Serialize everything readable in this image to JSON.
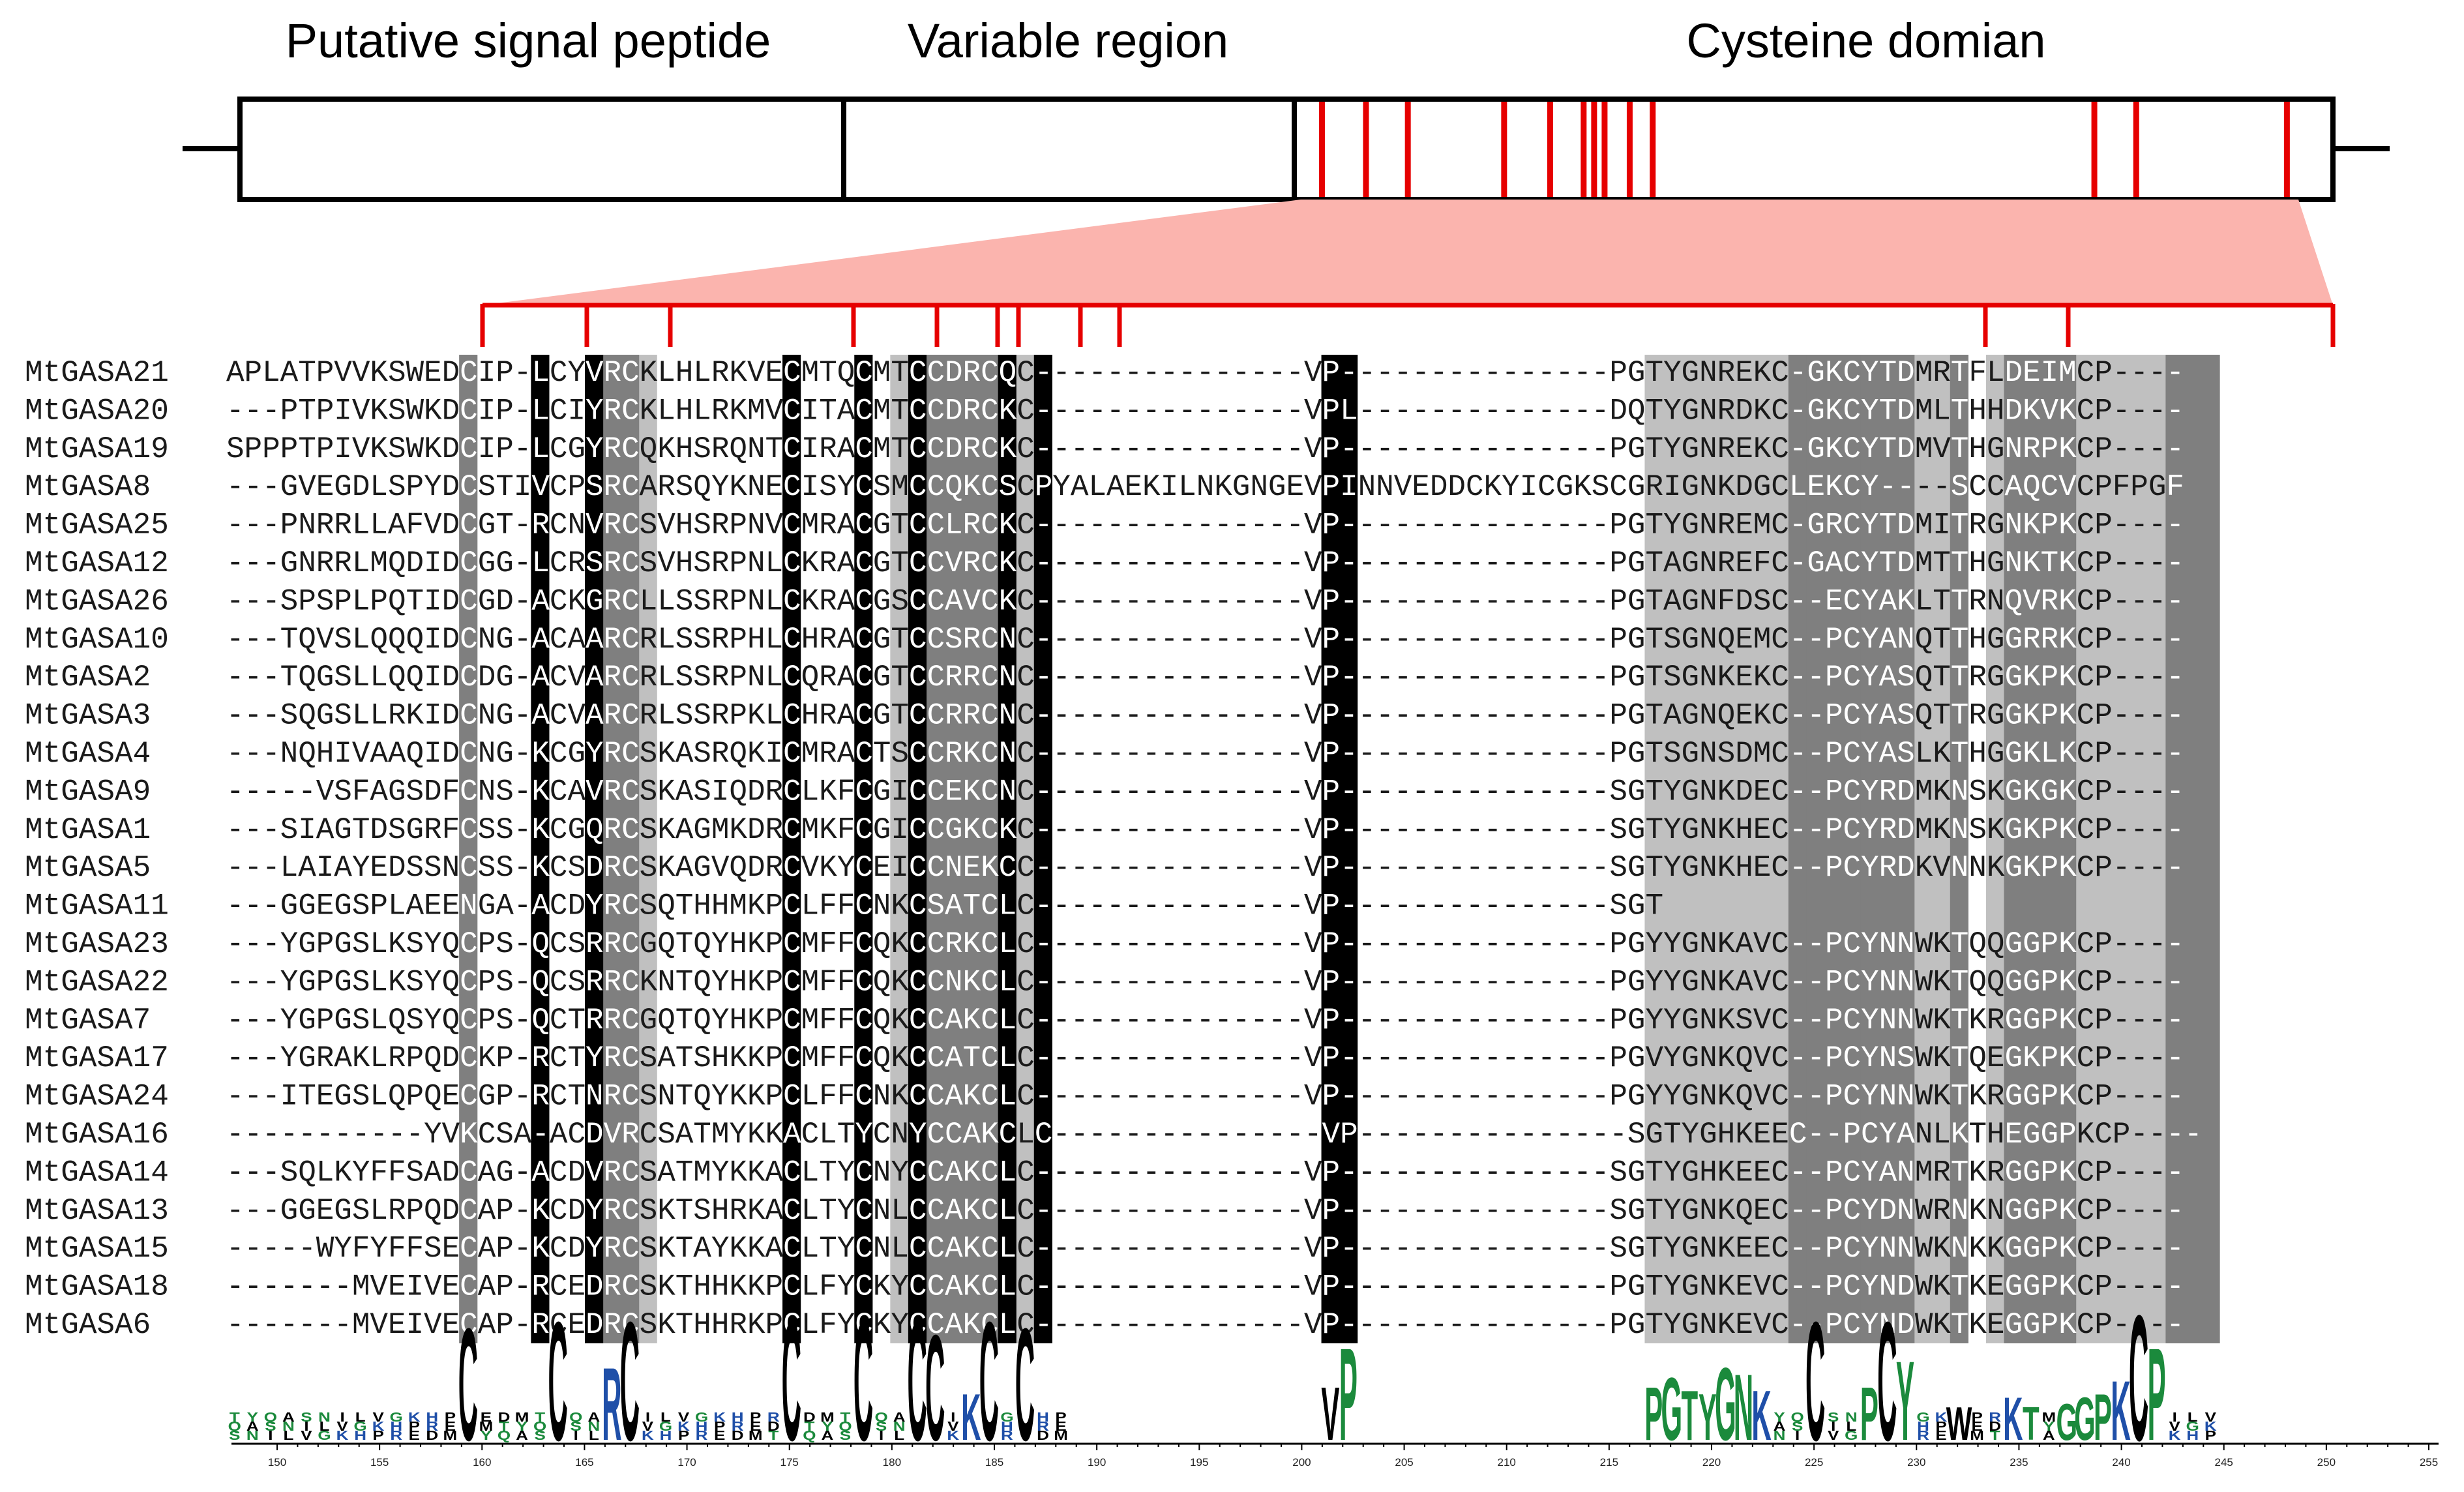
{
  "regions": {
    "signal": "Putative signal peptide",
    "variable": "Variable region",
    "cysteine": "Cysteine domian"
  },
  "colors": {
    "conserved_cys": "#e60000",
    "highlight_triangle": "#fbb4ae",
    "shade_black": "#000000",
    "shade_dark": "#7f7f7f",
    "shade_light": "#c0c0c0",
    "logo_blue": "#1f4fa8",
    "logo_green": "#1b8a3c",
    "logo_black": "#000000"
  },
  "sequences": [
    {
      "name": "MtGASA21",
      "seq": "APLATPVVKSWEDCIP-LCYVRCKLHLRKVECMTQCMTCCDRCQC---------------VP---------------PGTYGNREKC-GKCYTDMRTFLDEIMCP----"
    },
    {
      "name": "MtGASA20",
      "seq": "---PTPIVKSWKDCIP-LCIYRCKLHLRKMVCITACMTCCDRCKC---------------VPL--------------DQTYGNRDKC-GKCYTDMLTHHDKVKCP----"
    },
    {
      "name": "MtGASA19",
      "seq": "SPPPTPIVKSWKDCIP-LCGYRCQKHSRQNTCIRACMTCCDRCKC---------------VP---------------PGTYGNREKC-GKCYTDMVTHGNRPKCP----"
    },
    {
      "name": "MtGASA8",
      "seq": "---GVEGDLSPYDCSTIVCPSRCARSQYKNECISYCSMCCQKCSCPYALAEKILNKGNGEVPINNVEDDCKYICGKSCGRIGNKDGCLEKCY----SCCAQCVCPFPGF"
    },
    {
      "name": "MtGASA25",
      "seq": "---PNRRLLAFVDCGT-RCNVRCSVHSRPNVCMRACGTCCLRCKC---------------VP---------------PGTYGNREMC-GRCYTDMITRGNKPKCP----"
    },
    {
      "name": "MtGASA12",
      "seq": "---GNRRLMQDIDCGG-LCRSRCSVHSRPNLCKRACGTCCVRCKC---------------VP---------------PGTAGNREFC-GACYTDMTTHGNKTKCP----"
    },
    {
      "name": "MtGASA26",
      "seq": "---SPSPLPQTIDCGD-ACKGRCLLSSRPNLCKRACGSCCAVCKC---------------VP---------------PGTAGNFDSC--ECYAKLTTRNQVRKCP----"
    },
    {
      "name": "MtGASA10",
      "seq": "---TQVSLQQQIDCNG-ACAARCRLSSRPHLCHRACGTCCSRCNC---------------VP---------------PGTSGNQEMC--PCYANQTTHGGRRKCP----"
    },
    {
      "name": "MtGASA2",
      "seq": "---TQGSLLQQIDCDG-ACVARCRLSSRPNLCQRACGTCCRRCNC---------------VP---------------PGTSGNKEKC--PCYASQTTRGGKPKCP----"
    },
    {
      "name": "MtGASA3",
      "seq": "---SQGSLLRKIDCNG-ACVARCRLSSRPKLCHRACGTCCRRCNC---------------VP---------------PGTAGNQEKC--PCYASQTTRGGKPKCP----"
    },
    {
      "name": "MtGASA4",
      "seq": "---NQHIVAAQIDCNG-KCGYRCSKASRQKICMRACTSCCRKCNC---------------VP---------------PGTSGNSDMC--PCYASLKTHGGKLKCP----"
    },
    {
      "name": "MtGASA9",
      "seq": "-----VSFAGSDFCNS-KCAVRCSKASIQDRCLKFCGICCEKCNC---------------VP---------------SGTYGNKDEC--PCYRDMKNSKGKGKCP----"
    },
    {
      "name": "MtGASA1",
      "seq": "---SIAGTDSGRFCSS-KCGQRCSKAGMKDRCMKFCGICCGKCKC---------------VP---------------SGTYGNKHEC--PCYRDMKNSKGKPKCP----"
    },
    {
      "name": "MtGASA5",
      "seq": "---LAIAYEDSSNCSS-KCSDRCSKAGVQDRCVKYCEICCNEKCC---------------VP---------------SGTYGNKHEC--PCYRDKVNNKGKPKCP----"
    },
    {
      "name": "MtGASA11",
      "seq": "---GGEGSPLAEENGA-ACDYRCSQTHHMKPCLFFCNKCSATCLC---------------VP---------------SGT"
    },
    {
      "name": "MtGASA23",
      "seq": "---YGPGSLKSYQCPS-QCSRRCGQTQYHKPCMFFCQKCCRKCLC---------------VP---------------PGYYGNKAVC--PCYNNWKTQQGGPKCP----"
    },
    {
      "name": "MtGASA22",
      "seq": "---YGPGSLKSYQCPS-QCSRRCKNTQYHKPCMFFCQKCCNKCLC---------------VP---------------PGYYGNKAVC--PCYNNWKTQQGGPKCP----"
    },
    {
      "name": "MtGASA7",
      "seq": "---YGPGSLQSYQCPS-QCTRRCGQTQYHKPCMFFCQKCCAKCLC---------------VP---------------PGYYGNKSVC--PCYNNWKTKRGGPKCP----"
    },
    {
      "name": "MtGASA17",
      "seq": "---YGRAKLRPQDCKP-RCTYRCSATSHKKPCMFFCQKCCATCLC---------------VP---------------PGVYGNKQVC--PCYNSWKTQEGKPKCP----"
    },
    {
      "name": "MtGASA24",
      "seq": "---ITEGSLQPQECGP-RCTNRCSNTQYKKPCLFFCNKCCAKCLC---------------VP---------------PGYYGNKQVC--PCYNNWKTKRGGPKCP----"
    },
    {
      "name": "MtGASA16",
      "seq": "-----------YVKCSA-ACDVRCSATMYKKACLTYCNYCCAKCLC---------------VP---------------SGTYGHKEEC--PCYANLKTHEGGPKCP----"
    },
    {
      "name": "MtGASA14",
      "seq": "---SQLKYFFSADCAG-ACDVRCSATMYKKACLTYCNYCCAKCLC---------------VP---------------SGTYGHKEEC--PCYANMRTKRGGPKCP----"
    },
    {
      "name": "MtGASA13",
      "seq": "---GGEGSLRPQDCAP-KCDYRCSKTSHRKACLTYCNLCCAKCLC---------------VP---------------SGTYGNKQEC--PCYDNWRNKNGGPKCP----"
    },
    {
      "name": "MtGASA15",
      "seq": "-----WYFYFFSECAP-KCDYRCSKTAYKKACLTYCNLCCAKCLC---------------VP---------------SGTYGNKEEC--PCYNNWKNKKGGPKCP----"
    },
    {
      "name": "MtGASA18",
      "seq": "-------MVEIVECAP-RCEDRCSKTHHKKPCLFYCKYCCAKCLC---------------VP---------------PGTYGNKEVC--PCYNDWKTKEGGPKCP----"
    },
    {
      "name": "MtGASA6",
      "seq": "-------MVEIVECAP-RCEDRCSKTHHRKPCLFYCKYCCAKCLC---------------VP---------------PGTYGNKEVC--PCYNDWKTKEGGPKCP----"
    }
  ],
  "shading": {
    "black_columns": [
      17,
      20,
      31,
      35,
      38,
      43,
      45,
      61,
      62
    ],
    "dark_columns": [
      13,
      21,
      22,
      39,
      40,
      41,
      42,
      87,
      88,
      89,
      90,
      91,
      92,
      93,
      96,
      99,
      100,
      101,
      102,
      108,
      109,
      110
    ],
    "light_columns": [
      23,
      37,
      44,
      79,
      80,
      81,
      82,
      83,
      84,
      85,
      86,
      94,
      95,
      98,
      103,
      104,
      105,
      106,
      107
    ]
  },
  "conserved_cys_columns": [
    13,
    18,
    22,
    31,
    35,
    38,
    39,
    42,
    44,
    86,
    90,
    103
  ],
  "domain_bar_cys_marks": [
    0.517,
    0.538,
    0.558,
    0.604,
    0.626,
    0.642,
    0.647,
    0.652,
    0.664,
    0.675,
    0.886,
    0.906,
    0.978
  ],
  "logo": [
    {
      "col": 13,
      "letter": "C",
      "h": 3.4,
      "color": "#000000"
    },
    {
      "col": 18,
      "letter": "C",
      "h": 3.6,
      "color": "#000000"
    },
    {
      "col": 21,
      "letter": "R",
      "h": 2.2,
      "color": "#1f4fa8"
    },
    {
      "col": 22,
      "letter": "C",
      "h": 3.6,
      "color": "#000000"
    },
    {
      "col": 31,
      "letter": "C",
      "h": 3.6,
      "color": "#000000"
    },
    {
      "col": 35,
      "letter": "C",
      "h": 3.6,
      "color": "#000000"
    },
    {
      "col": 38,
      "letter": "C",
      "h": 3.6,
      "color": "#000000"
    },
    {
      "col": 39,
      "letter": "C",
      "h": 3.2,
      "color": "#000000"
    },
    {
      "col": 41,
      "letter": "K",
      "h": 1.4,
      "color": "#1f4fa8"
    },
    {
      "col": 42,
      "letter": "C",
      "h": 3.6,
      "color": "#000000"
    },
    {
      "col": 44,
      "letter": "C",
      "h": 3.4,
      "color": "#000000"
    },
    {
      "col": 61,
      "letter": "V",
      "h": 1.6,
      "color": "#000000"
    },
    {
      "col": 62,
      "letter": "P",
      "h": 2.8,
      "color": "#1b8a3c"
    },
    {
      "col": 79,
      "letter": "P",
      "h": 1.6,
      "color": "#1b8a3c"
    },
    {
      "col": 80,
      "letter": "G",
      "h": 1.9,
      "color": "#1b8a3c"
    },
    {
      "col": 81,
      "letter": "T",
      "h": 1.5,
      "color": "#1b8a3c"
    },
    {
      "col": 82,
      "letter": "Y",
      "h": 1.4,
      "color": "#1b8a3c"
    },
    {
      "col": 83,
      "letter": "G",
      "h": 2.2,
      "color": "#1b8a3c"
    },
    {
      "col": 84,
      "letter": "N",
      "h": 2.0,
      "color": "#1b8a3c"
    },
    {
      "col": 85,
      "letter": "K",
      "h": 1.5,
      "color": "#1f4fa8"
    },
    {
      "col": 88,
      "letter": "C",
      "h": 3.6,
      "color": "#000000"
    },
    {
      "col": 91,
      "letter": "P",
      "h": 1.6,
      "color": "#1b8a3c"
    },
    {
      "col": 92,
      "letter": "C",
      "h": 3.6,
      "color": "#000000"
    },
    {
      "col": 93,
      "letter": "Y",
      "h": 2.4,
      "color": "#1b8a3c"
    },
    {
      "col": 96,
      "letter": "W",
      "h": 1.0,
      "color": "#000000"
    },
    {
      "col": 99,
      "letter": "K",
      "h": 1.3,
      "color": "#1f4fa8"
    },
    {
      "col": 100,
      "letter": "T",
      "h": 1.0,
      "color": "#1b8a3c"
    },
    {
      "col": 102,
      "letter": "G",
      "h": 1.1,
      "color": "#1b8a3c"
    },
    {
      "col": 103,
      "letter": "G",
      "h": 1.3,
      "color": "#1b8a3c"
    },
    {
      "col": 104,
      "letter": "P",
      "h": 1.4,
      "color": "#1b8a3c"
    },
    {
      "col": 105,
      "letter": "K",
      "h": 1.8,
      "color": "#1f4fa8"
    },
    {
      "col": 106,
      "letter": "C",
      "h": 3.8,
      "color": "#000000"
    },
    {
      "col": 107,
      "letter": "P",
      "h": 2.8,
      "color": "#1b8a3c"
    }
  ],
  "axis": {
    "start": 150,
    "end": 255,
    "labels": [
      "150",
      "155",
      "160",
      "165",
      "170",
      "175",
      "180",
      "185",
      "190",
      "195",
      "200",
      "205",
      "210",
      "215",
      "220",
      "225",
      "230",
      "235",
      "240",
      "245",
      "250",
      "255"
    ]
  }
}
